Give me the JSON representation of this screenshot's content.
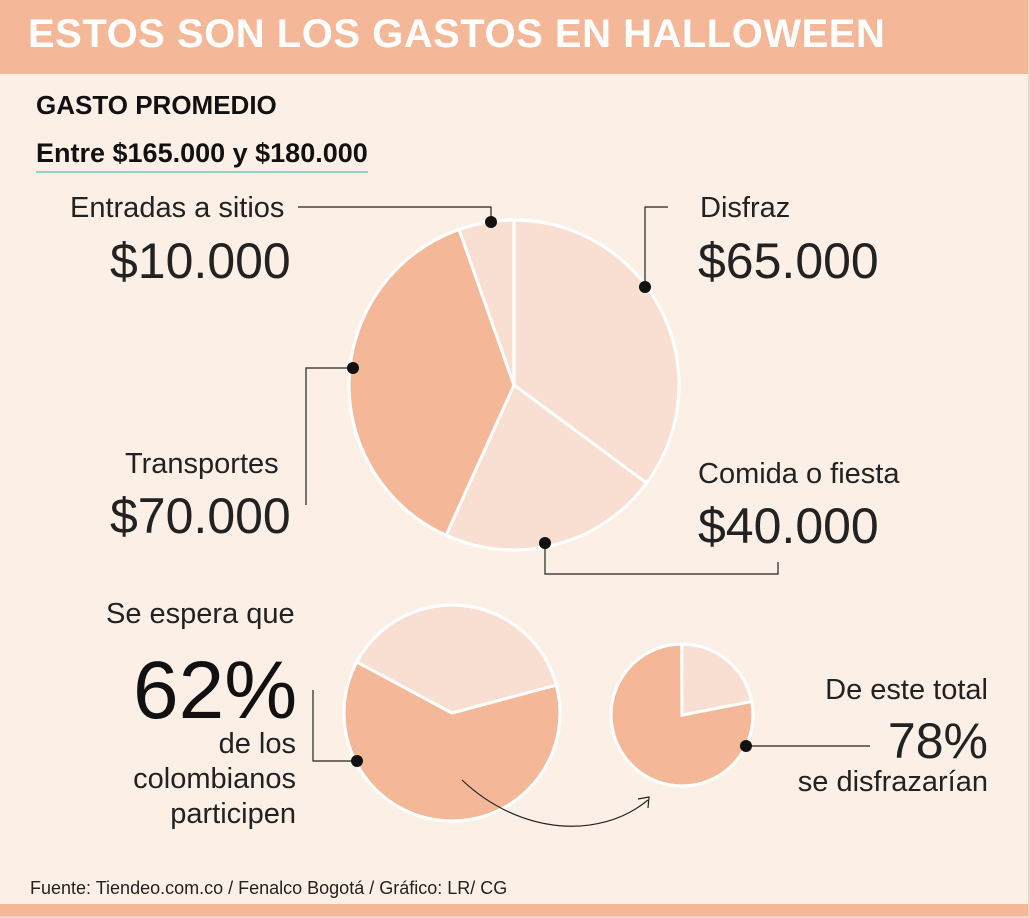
{
  "header": {
    "title": "ESTOS SON LOS GASTOS EN HALLOWEEN",
    "subtitle": "GASTO PROMEDIO",
    "range": "Entre $165.000 y $180.000"
  },
  "colors": {
    "dark_peach": "#f4b898",
    "light_peach": "#f8dfd1",
    "background": "#fcefe6"
  },
  "chart_data": [
    {
      "type": "pie",
      "slices": [
        {
          "label": "Disfraz",
          "value_text": "$65.000",
          "value": 65000,
          "color": "#f8dfd1"
        },
        {
          "label": "Comida o fiesta",
          "value_text": "$40.000",
          "value": 40000,
          "color": "#f8dfd1"
        },
        {
          "label": "Transportes",
          "value_text": "$70.000",
          "value": 70000,
          "color": "#f4b898"
        },
        {
          "label": "Entradas a sitios",
          "value_text": "$10.000",
          "value": 10000,
          "color": "#f8dfd1"
        }
      ]
    },
    {
      "type": "pie",
      "intro": "Se espera que",
      "percent_text": "62%",
      "caption_lines": [
        "de los",
        "colombianos",
        "participen"
      ],
      "slices": [
        {
          "value": 62,
          "color": "#f4b898"
        },
        {
          "value": 38,
          "color": "#f8dfd1"
        }
      ]
    },
    {
      "type": "pie",
      "intro": "De este total",
      "percent_text": "78%",
      "caption": "se disfrazarían",
      "slices": [
        {
          "value": 78,
          "color": "#f4b898"
        },
        {
          "value": 22,
          "color": "#f8dfd1"
        }
      ]
    }
  ],
  "footer": {
    "source": "Fuente: Tiendeo.com.co / Fenalco Bogotá / Gráfico: LR/ CG"
  }
}
